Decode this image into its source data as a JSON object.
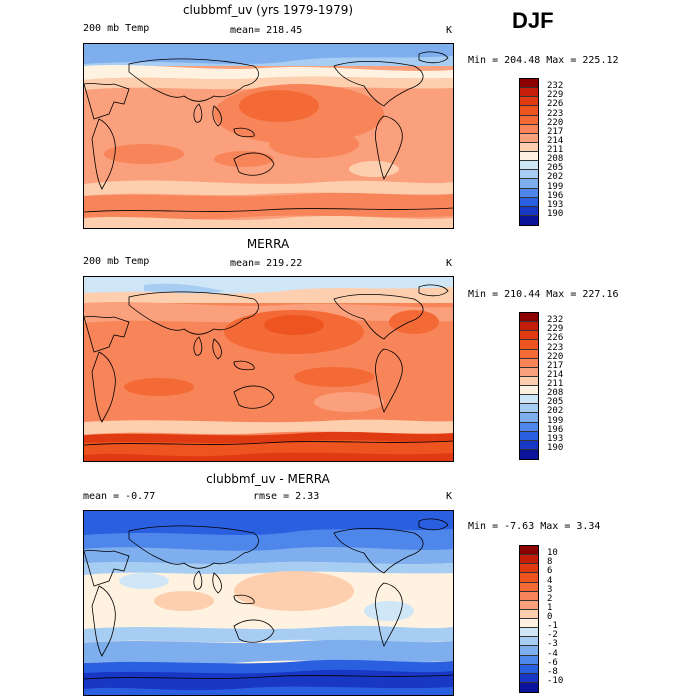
{
  "season": "DJF",
  "panels": [
    {
      "title": "clubbmf_uv (yrs 1979-1979)",
      "left_label": "200 mb Temp",
      "mid_label": "mean= 218.45",
      "unit": "K",
      "minmax": "Min = 204.48 Max = 225.12",
      "levels": [
        "232",
        "229",
        "226",
        "223",
        "220",
        "217",
        "214",
        "211",
        "208",
        "205",
        "202",
        "199",
        "196",
        "193",
        "190"
      ],
      "colors": [
        "#8b0000",
        "#c41e0a",
        "#e03a12",
        "#ee5420",
        "#f46a36",
        "#f78559",
        "#fba07c",
        "#fdcfae",
        "#fff2e0",
        "#cfe6f7",
        "#a8cdf2",
        "#7eaeee",
        "#4f86ea",
        "#2a5fe0",
        "#1837c5",
        "#0b139a"
      ]
    },
    {
      "title": "MERRA",
      "left_label": "200 mb Temp",
      "mid_label": "mean= 219.22",
      "unit": "K",
      "minmax": "Min = 210.44 Max = 227.16",
      "levels": [
        "232",
        "229",
        "226",
        "223",
        "220",
        "217",
        "214",
        "211",
        "208",
        "205",
        "202",
        "199",
        "196",
        "193",
        "190"
      ],
      "colors": [
        "#8b0000",
        "#c41e0a",
        "#e03a12",
        "#ee5420",
        "#f46a36",
        "#f78559",
        "#fba07c",
        "#fdcfae",
        "#fff2e0",
        "#cfe6f7",
        "#a8cdf2",
        "#7eaeee",
        "#4f86ea",
        "#2a5fe0",
        "#1837c5",
        "#0b139a"
      ]
    },
    {
      "title": "clubbmf_uv - MERRA",
      "left_label": "mean =   -0.77",
      "mid_label": "rmse =   2.33",
      "unit": "K",
      "minmax": "Min = -7.63 Max =   3.34",
      "levels": [
        "10",
        "8",
        "6",
        "4",
        "3",
        "2",
        "1",
        "0",
        "-1",
        "-2",
        "-3",
        "-4",
        "-6",
        "-8",
        "-10"
      ],
      "colors": [
        "#8b0000",
        "#c41e0a",
        "#e03a12",
        "#ee5420",
        "#f46a36",
        "#f78559",
        "#fba07c",
        "#fdcfae",
        "#fff2e0",
        "#cfe6f7",
        "#a8cdf2",
        "#7eaeee",
        "#4f86ea",
        "#2a5fe0",
        "#1837c5",
        "#0b139a"
      ]
    }
  ]
}
